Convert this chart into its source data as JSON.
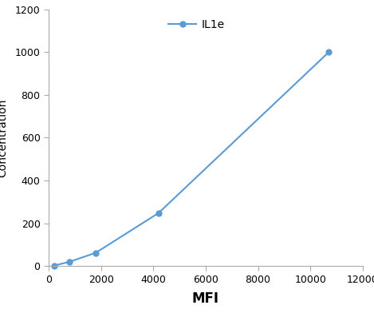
{
  "x": [
    200,
    800,
    1800,
    4200,
    10700
  ],
  "y": [
    2,
    20,
    62,
    248,
    1000
  ],
  "line_color": "#5b9bd5",
  "marker_color": "#5b9bd5",
  "marker_style": "o",
  "marker_size": 5,
  "line_width": 1.5,
  "legend_label": "IL1e",
  "xlabel": "MFI",
  "ylabel": "Concentration",
  "xlabel_fontsize": 12,
  "ylabel_fontsize": 10,
  "xlim": [
    0,
    12000
  ],
  "ylim": [
    0,
    1200
  ],
  "xticks": [
    0,
    2000,
    4000,
    6000,
    8000,
    10000,
    12000
  ],
  "yticks": [
    0,
    200,
    400,
    600,
    800,
    1000,
    1200
  ],
  "tick_fontsize": 9,
  "legend_fontsize": 10,
  "background_color": "#ffffff",
  "spine_color": "#aaaaaa",
  "tick_color": "#aaaaaa"
}
